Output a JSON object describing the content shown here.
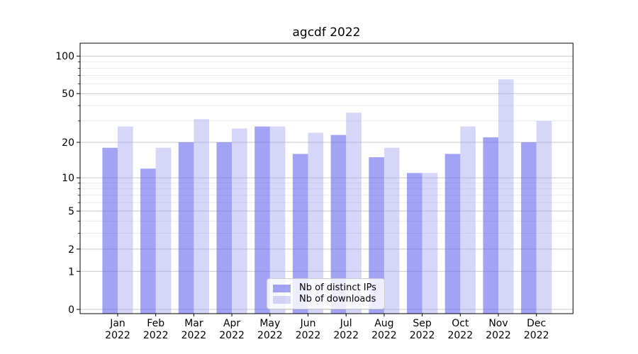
{
  "chart_data": {
    "type": "bar",
    "title": "agcdf 2022",
    "categories": [
      "Jan",
      "Feb",
      "Mar",
      "Apr",
      "May",
      "Jun",
      "Jul",
      "Aug",
      "Sep",
      "Oct",
      "Nov",
      "Dec"
    ],
    "year_label": "2022",
    "series": [
      {
        "name": "Nb of distinct IPs",
        "color": "#6666ee",
        "fill": "rgba(102,102,238,0.60)",
        "values": [
          18,
          12,
          20,
          20,
          27,
          16,
          23,
          15,
          11,
          16,
          22,
          20
        ]
      },
      {
        "name": "Nb of downloads",
        "color": "#9999f0",
        "fill": "rgba(153,153,240,0.40)",
        "values": [
          27,
          18,
          31,
          26,
          27,
          24,
          35,
          18,
          11,
          27,
          65,
          30
        ]
      }
    ],
    "yscale": "log1p",
    "ylim": [
      0,
      127
    ],
    "yticks_major": [
      0,
      1,
      2,
      5,
      10,
      20,
      50,
      100
    ],
    "yticks_minor": [
      3,
      4,
      6,
      7,
      8,
      9,
      30,
      40,
      60,
      70,
      80,
      90
    ],
    "grid": true,
    "legend_position": "lower center",
    "colors": {
      "grid_major": "#c9c9c9",
      "grid_minor": "#ececec",
      "spine": "#000000",
      "text": "#000000"
    }
  }
}
